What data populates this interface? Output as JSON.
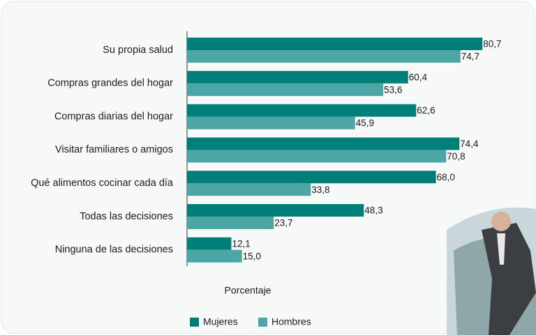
{
  "chart_data": {
    "type": "hbar",
    "categories": [
      "Su propia salud",
      "Compras grandes del hogar",
      "Compras diarias del hogar",
      "Visitar familiares o amigos",
      "Qué alimentos cocinar cada día",
      "Todas las decisiones",
      "Ninguna de las decisiones"
    ],
    "series": [
      {
        "name": "Mujeres",
        "color": "#007f7a",
        "values": [
          80.7,
          60.4,
          62.6,
          74.4,
          68.0,
          48.3,
          12.1
        ],
        "value_labels": [
          "80,7",
          "60,4",
          "62,6",
          "74,4",
          "68,0",
          "48,3",
          "12,1"
        ]
      },
      {
        "name": "Hombres",
        "color": "#4ca6a6",
        "values": [
          74.7,
          53.6,
          45.9,
          70.8,
          33.8,
          23.7,
          15.0
        ],
        "value_labels": [
          "74,7",
          "53,6",
          "45,9",
          "70,8",
          "33,8",
          "23,7",
          "15,0"
        ]
      }
    ],
    "x_label": "Porcentaje",
    "xlim": [
      0,
      90
    ]
  }
}
